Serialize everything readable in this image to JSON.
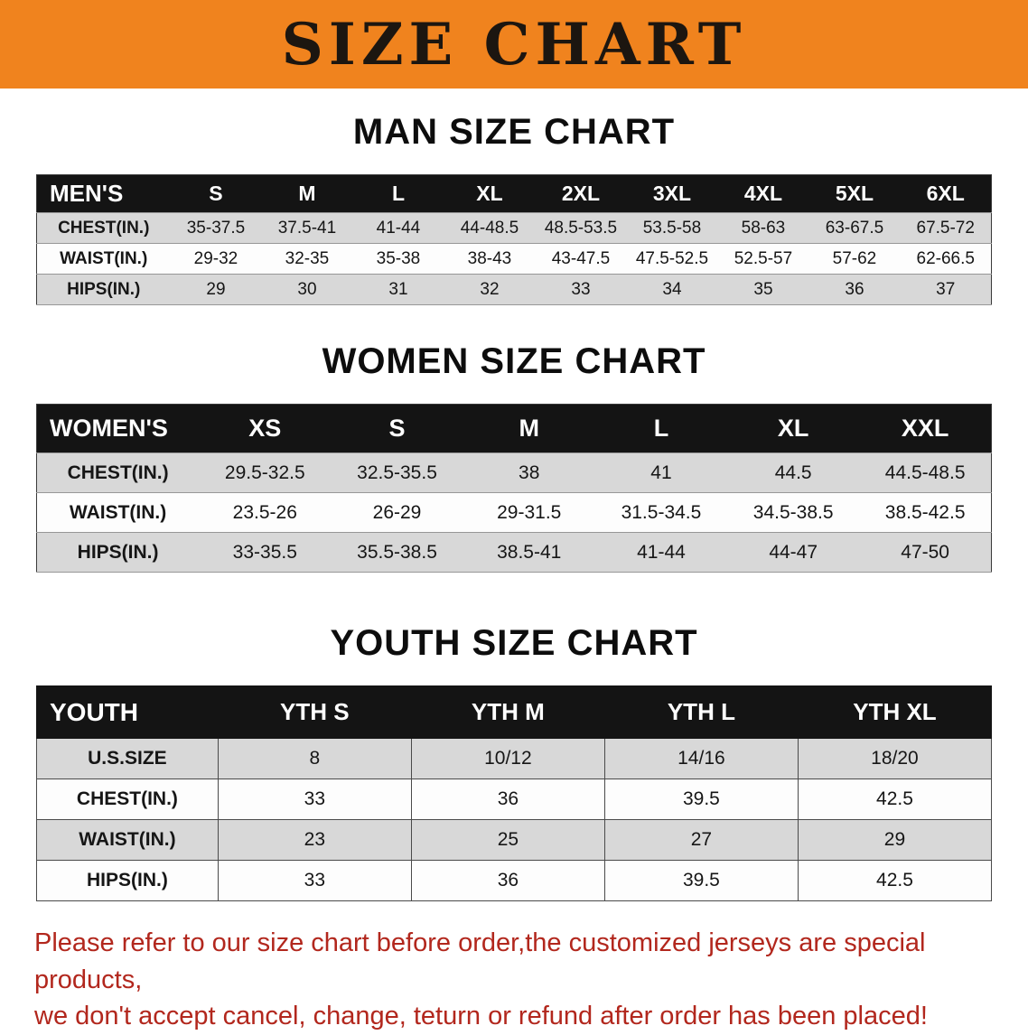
{
  "banner": {
    "title": "SIZE CHART"
  },
  "sections": [
    {
      "id": "men",
      "heading": "MAN SIZE CHART",
      "table": {
        "type": "table",
        "header": [
          "MEN'S",
          "S",
          "M",
          "L",
          "XL",
          "2XL",
          "3XL",
          "4XL",
          "5XL",
          "6XL"
        ],
        "rows": [
          [
            "CHEST(IN.)",
            "35-37.5",
            "37.5-41",
            "41-44",
            "44-48.5",
            "48.5-53.5",
            "53.5-58",
            "58-63",
            "63-67.5",
            "67.5-72"
          ],
          [
            "WAIST(IN.)",
            "29-32",
            "32-35",
            "35-38",
            "38-43",
            "43-47.5",
            "47.5-52.5",
            "52.5-57",
            "57-62",
            "62-66.5"
          ],
          [
            "HIPS(IN.)",
            "29",
            "30",
            "31",
            "32",
            "33",
            "34",
            "35",
            "36",
            "37"
          ]
        ]
      }
    },
    {
      "id": "women",
      "heading": "WOMEN SIZE CHART",
      "table": {
        "type": "table",
        "header": [
          "WOMEN'S",
          "XS",
          "S",
          "M",
          "L",
          "XL",
          "XXL"
        ],
        "rows": [
          [
            "CHEST(IN.)",
            "29.5-32.5",
            "32.5-35.5",
            "38",
            "41",
            "44.5",
            "44.5-48.5"
          ],
          [
            "WAIST(IN.)",
            "23.5-26",
            "26-29",
            "29-31.5",
            "31.5-34.5",
            "34.5-38.5",
            "38.5-42.5"
          ],
          [
            "HIPS(IN.)",
            "33-35.5",
            "35.5-38.5",
            "38.5-41",
            "41-44",
            "44-47",
            "47-50"
          ]
        ]
      }
    },
    {
      "id": "youth",
      "heading": "YOUTH SIZE CHART",
      "table": {
        "type": "table",
        "header": [
          "YOUTH",
          "YTH S",
          "YTH M",
          "YTH L",
          "YTH XL"
        ],
        "rows": [
          [
            "U.S.SIZE",
            "8",
            "10/12",
            "14/16",
            "18/20"
          ],
          [
            "CHEST(IN.)",
            "33",
            "36",
            "39.5",
            "42.5"
          ],
          [
            "WAIST(IN.)",
            "23",
            "25",
            "27",
            "29"
          ],
          [
            "HIPS(IN.)",
            "33",
            "36",
            "39.5",
            "42.5"
          ]
        ]
      }
    }
  ],
  "footer_note": {
    "line1": "Please refer to our size chart before order,the customized jerseys are special products,",
    "line2": "we don't accept cancel, change, teturn or refund after order has been placed!"
  },
  "colors": {
    "banner_bg": "#f0831e",
    "banner_text": "#1c1610",
    "table_header_bg": "#141414",
    "table_header_text": "#ffffff",
    "row_stripe": "#d8d8d8",
    "note_text": "#b2271d"
  }
}
